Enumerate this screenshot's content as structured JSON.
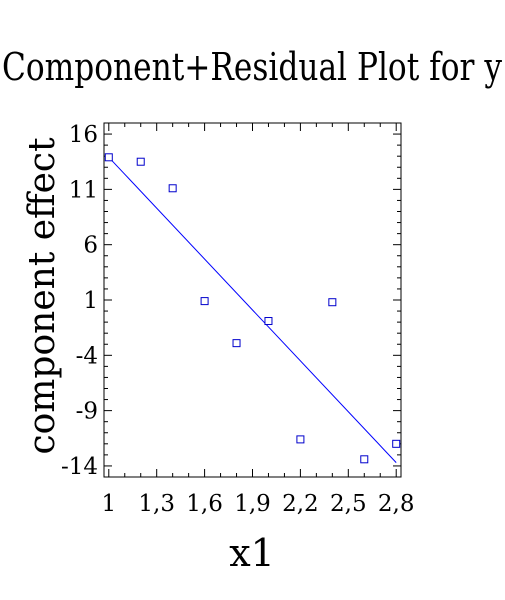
{
  "chart_data": {
    "type": "scatter",
    "title": "Component+Residual Plot for y",
    "xlabel": "x1",
    "ylabel": "component effect",
    "xlim": [
      0.97,
      2.83
    ],
    "ylim": [
      -15,
      17
    ],
    "xticks": [
      1.0,
      1.3,
      1.6,
      1.9,
      2.2,
      2.5,
      2.8
    ],
    "xtick_labels": [
      "1",
      "1,3",
      "1,6",
      "1,9",
      "2,2",
      "2,5",
      "2,8"
    ],
    "yticks": [
      -14,
      -9,
      -4,
      1,
      6,
      11,
      16
    ],
    "ytick_labels": [
      "-14",
      "-9",
      "-4",
      "1",
      "6",
      "11",
      "16"
    ],
    "points": [
      {
        "x": 1.0,
        "y": 13.9
      },
      {
        "x": 1.2,
        "y": 13.5
      },
      {
        "x": 1.4,
        "y": 11.1
      },
      {
        "x": 1.6,
        "y": 0.9
      },
      {
        "x": 1.8,
        "y": -2.9
      },
      {
        "x": 2.0,
        "y": -0.9
      },
      {
        "x": 2.2,
        "y": -11.6
      },
      {
        "x": 2.4,
        "y": 0.8
      },
      {
        "x": 2.6,
        "y": -13.4
      },
      {
        "x": 2.8,
        "y": -12.0
      }
    ],
    "fit_line": {
      "x": [
        1.0,
        2.8
      ],
      "y": [
        13.9,
        -13.7
      ]
    },
    "grid": false,
    "legend": "none",
    "marker_color": "#0000cc",
    "line_color": "#0000ff"
  }
}
